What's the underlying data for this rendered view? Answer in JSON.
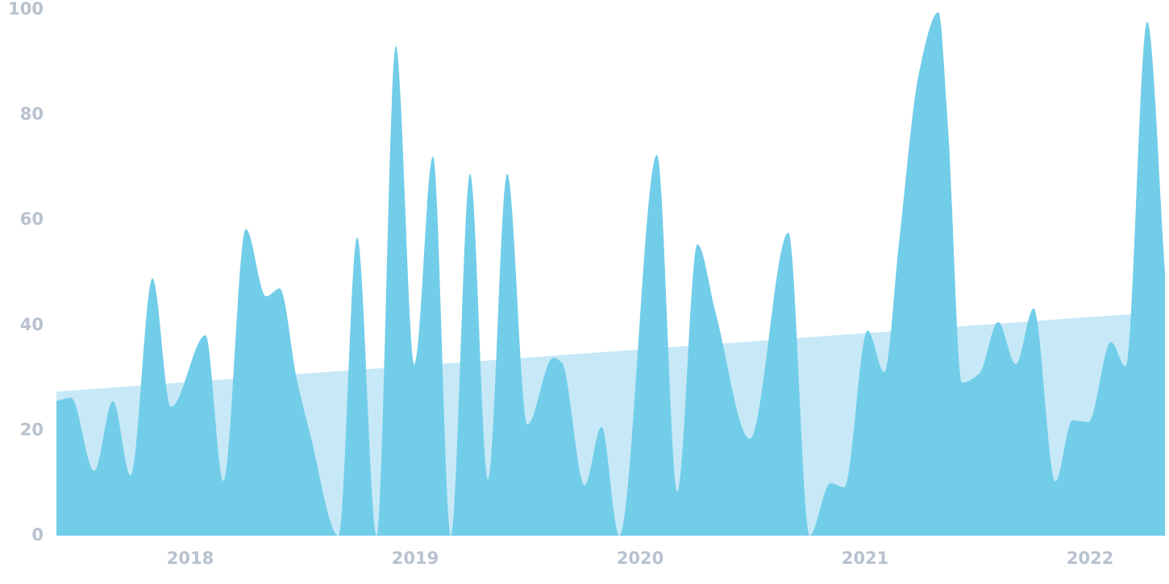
{
  "chart_data": {
    "type": "area",
    "xlim": [
      2017.405,
      2022.333
    ],
    "xticks": [
      2018,
      2019,
      2020,
      2021,
      2022
    ],
    "ylim": [
      0,
      100
    ],
    "yticks": [
      0,
      20,
      40,
      60,
      80,
      100
    ],
    "series": [
      {
        "color": "#c7e9f7",
        "x": [
          2017.405,
          2022.333
        ],
        "values": [
          27.4,
          42.6
        ]
      },
      {
        "color": "#72cde9",
        "x": [
          2017.405,
          2017.47,
          2017.573,
          2017.656,
          2017.735,
          2017.832,
          2017.914,
          2018.068,
          2018.147,
          2018.247,
          2018.337,
          2018.398,
          2018.473,
          2018.534,
          2018.659,
          2018.742,
          2018.828,
          2018.914,
          2018.996,
          2019.079,
          2019.158,
          2019.244,
          2019.323,
          2019.409,
          2019.498,
          2019.613,
          2019.652,
          2019.753,
          2019.828,
          2019.907,
          2020.075,
          2020.165,
          2020.254,
          2020.337,
          2020.487,
          2020.659,
          2020.753,
          2020.846,
          2020.907,
          2021.011,
          2021.086,
          2021.151,
          2021.24,
          2021.326,
          2021.369,
          2021.43,
          2021.509,
          2021.591,
          2021.67,
          2021.749,
          2021.846,
          2021.921,
          2021.993,
          2022.093,
          2022.158,
          2022.254,
          2022.333
        ],
        "values": [
          25.6,
          26.2,
          12.3,
          25.6,
          11.5,
          48.9,
          24.5,
          38.1,
          10.4,
          58.3,
          45.5,
          47,
          29.9,
          19.1,
          0,
          56.7,
          0,
          93.1,
          32.6,
          72.1,
          0,
          68.8,
          10.7,
          68.8,
          21.1,
          33.8,
          32.9,
          9.6,
          20.7,
          0,
          72.4,
          8.4,
          55.4,
          42.1,
          18.4,
          57.6,
          0,
          10,
          9.2,
          39,
          31.1,
          55.9,
          88.1,
          99.5,
          77.3,
          29.1,
          30.9,
          40.6,
          32.6,
          43.2,
          10.3,
          21.9,
          21.6,
          36.8,
          32.2,
          97.7,
          50.1
        ]
      }
    ]
  }
}
